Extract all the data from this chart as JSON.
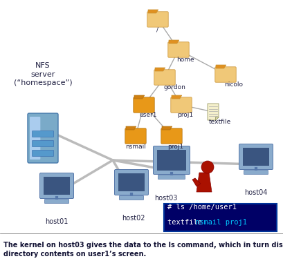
{
  "bg_color": "#ffffff",
  "label_color": "#222244",
  "folder_light": "#f0c060",
  "folder_dark": "#e08000",
  "folder_edge": "#c07000",
  "folder_tab_light": "#f0c060",
  "server_color": "#7aaac8",
  "server_edge": "#4477aa",
  "monitor_face": "#8aabcc",
  "monitor_edge": "#5577aa",
  "monitor_screen": "#3a5580",
  "monitor_base": "#8aabcc",
  "wire_color": "#bbbbbb",
  "person_body": "#aa1100",
  "person_head": "#cc8855",
  "person_hair": "#220000",
  "terminal_bg": "#000066",
  "terminal_text": "#ffffff",
  "terminal_cyan": "#00ccff",
  "term_line1": "# ls /home/user1",
  "term_line2_w": "textfile ",
  "term_line2_c": "nsmail proj1",
  "doc_face": "#f5f0cc",
  "doc_edge": "#999966",
  "nfs_label": "NFS\nserver\n(“homespace”)",
  "tree_node_color": "#555555",
  "caption_color": "#111133"
}
